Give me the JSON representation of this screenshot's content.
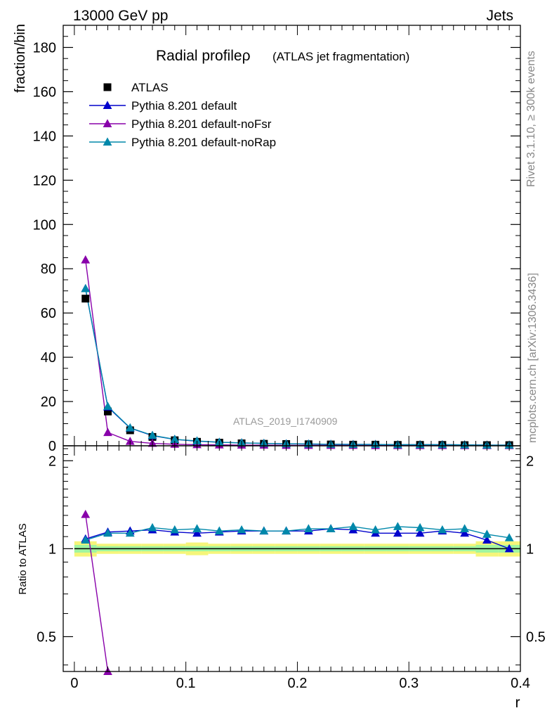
{
  "header": {
    "left": "13000 GeV pp",
    "right": "Jets"
  },
  "side_labels": {
    "rivet": "Rivet 3.1.10, ≥ 300k events",
    "mcplots": "mcplots.cern.ch [arXiv:1306.3436]"
  },
  "colors": {
    "atlas": "#000000",
    "default": "#0000cc",
    "noFsr": "#8800aa",
    "noRap": "#0088aa",
    "band_outer": "#f5f57a",
    "band_inner": "#9ff5a0",
    "ratio_line": "#000000"
  },
  "chart_data": [
    {
      "type": "line",
      "title": "Radial profileρ",
      "title_suffix": "(ATLAS jet fragmentation)",
      "watermark": "ATLAS_2019_I1740909",
      "xlabel": "r",
      "ylabel": "fraction/bin",
      "xlim": [
        -0.01,
        0.4
      ],
      "ylim": [
        0,
        190
      ],
      "yticks": [
        0,
        20,
        40,
        60,
        80,
        100,
        120,
        140,
        160,
        180
      ],
      "x": [
        0.01,
        0.03,
        0.05,
        0.07,
        0.09,
        0.11,
        0.13,
        0.15,
        0.17,
        0.19,
        0.21,
        0.23,
        0.25,
        0.27,
        0.29,
        0.31,
        0.33,
        0.35,
        0.37,
        0.39
      ],
      "legend_position": "top-left",
      "series": [
        {
          "name": "ATLAS",
          "color_key": "atlas",
          "marker": "square",
          "values": [
            66.5,
            15.5,
            7.0,
            4.0,
            2.5,
            1.8,
            1.4,
            1.1,
            0.9,
            0.8,
            0.7,
            0.6,
            0.5,
            0.5,
            0.4,
            0.4,
            0.4,
            0.3,
            0.3,
            0.3
          ]
        },
        {
          "name": "Pythia 8.201 default",
          "color_key": "default",
          "marker": "triangle",
          "values": [
            71,
            17.5,
            8.0,
            4.6,
            2.9,
            2.1,
            1.6,
            1.3,
            1.1,
            0.9,
            0.8,
            0.7,
            0.6,
            0.6,
            0.5,
            0.5,
            0.5,
            0.4,
            0.3,
            0.3
          ]
        },
        {
          "name": "Pythia 8.201 default-noFsr",
          "color_key": "noFsr",
          "marker": "triangle",
          "values": [
            84,
            6.0,
            2.0,
            1.1,
            0.7,
            0.5,
            0.4,
            0.3,
            0.3,
            0.2,
            0.2,
            0.2,
            0.2,
            0.1,
            0.1,
            0.1,
            0.1,
            0.1,
            0.1,
            0.1
          ]
        },
        {
          "name": "Pythia 8.201 default-noRap",
          "color_key": "noRap",
          "marker": "triangle",
          "values": [
            71,
            17.8,
            8.1,
            4.7,
            2.9,
            2.2,
            1.6,
            1.3,
            1.1,
            0.9,
            0.8,
            0.7,
            0.6,
            0.6,
            0.5,
            0.5,
            0.5,
            0.4,
            0.3,
            0.3
          ]
        }
      ]
    },
    {
      "type": "line",
      "ylabel": "Ratio to ATLAS",
      "xlabel": "r",
      "xlim": [
        -0.01,
        0.4
      ],
      "ylim": [
        0.38,
        2.25
      ],
      "yticks": [
        0.5,
        1,
        2
      ],
      "xticks": [
        0,
        0.1,
        0.2,
        0.3,
        0.4
      ],
      "xtick_labels": [
        "0",
        "0.1",
        "0.2",
        "0.3",
        "0.4"
      ],
      "ratio_reference": 1,
      "band_inner_halfwidth": [
        0.03,
        0.02,
        0.02,
        0.02,
        0.02,
        0.02,
        0.02,
        0.02,
        0.02,
        0.02,
        0.02,
        0.02,
        0.02,
        0.02,
        0.02,
        0.02,
        0.02,
        0.02,
        0.03,
        0.03
      ],
      "band_outer_halfwidth": [
        0.06,
        0.04,
        0.04,
        0.04,
        0.04,
        0.05,
        0.04,
        0.04,
        0.04,
        0.04,
        0.04,
        0.04,
        0.04,
        0.04,
        0.04,
        0.04,
        0.04,
        0.04,
        0.06,
        0.06
      ],
      "series": [
        {
          "name": "Pythia 8.201 default",
          "color_key": "default",
          "values": [
            1.08,
            1.14,
            1.15,
            1.16,
            1.14,
            1.13,
            1.14,
            1.15,
            1.15,
            1.15,
            1.15,
            1.17,
            1.16,
            1.13,
            1.13,
            1.13,
            1.15,
            1.13,
            1.07,
            1.0
          ]
        },
        {
          "name": "Pythia 8.201 default-noFsr",
          "color_key": "noFsr",
          "values": [
            1.31,
            0.38
          ]
        },
        {
          "name": "Pythia 8.201 default-noRap",
          "color_key": "noRap",
          "values": [
            1.07,
            1.13,
            1.13,
            1.18,
            1.16,
            1.17,
            1.15,
            1.16,
            1.15,
            1.15,
            1.17,
            1.17,
            1.19,
            1.16,
            1.19,
            1.18,
            1.16,
            1.17,
            1.12,
            1.09
          ]
        }
      ]
    }
  ]
}
